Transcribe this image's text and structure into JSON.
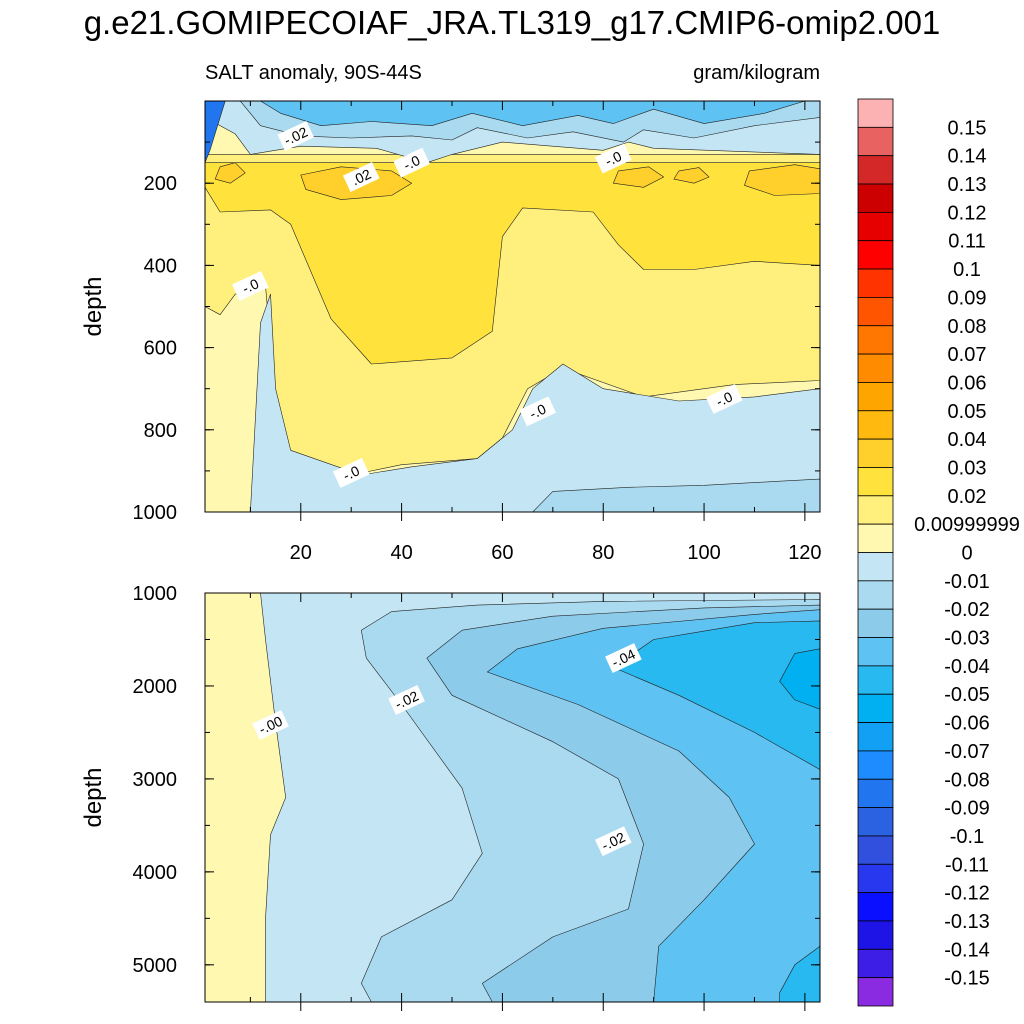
{
  "title": "g.e21.GOMIPECOIAF_JRA.TL319_g17.CMIP6-omip2.001",
  "subtitle_left": "SALT anomaly, 90S-44S",
  "subtitle_right": "gram/kilogram",
  "chart_data": {
    "type": "heatmap",
    "variable": "SALT anomaly",
    "region": "90S-44S",
    "units": "gram/kilogram",
    "x": {
      "range": [
        1,
        123
      ],
      "ticks": [
        20,
        40,
        60,
        80,
        100,
        120
      ]
    },
    "panels": [
      {
        "name": "upper",
        "ylabel": "depth",
        "yrange": [
          0,
          1000
        ],
        "yticks": [
          200,
          400,
          600,
          800,
          1000
        ],
        "contour_labels": [
          {
            "text": "-.02",
            "x": 19,
            "y": 85
          },
          {
            "text": ".02",
            "x": 32,
            "y": 185
          },
          {
            "text": "-.0",
            "x": 42,
            "y": 150
          },
          {
            "text": "-.0",
            "x": 82,
            "y": 140
          },
          {
            "text": "-.0",
            "x": 10,
            "y": 450
          },
          {
            "text": "-.0",
            "x": 67,
            "y": 755
          },
          {
            "text": "-.0",
            "x": 104,
            "y": 725
          },
          {
            "text": "-.0",
            "x": 30,
            "y": 905
          }
        ]
      },
      {
        "name": "lower",
        "ylabel": "depth",
        "yrange": [
          1000,
          5400
        ],
        "yticks": [
          1000,
          2000,
          3000,
          4000,
          5000
        ],
        "contour_labels": [
          {
            "text": "-.00",
            "x": 14,
            "y": 2420
          },
          {
            "text": "-.02",
            "x": 41,
            "y": 2150
          },
          {
            "text": "-.04",
            "x": 84,
            "y": 1700
          },
          {
            "text": "-.02",
            "x": 82,
            "y": 3670
          }
        ]
      }
    ],
    "colorbar": {
      "labels": [
        "0.15",
        "0.14",
        "0.13",
        "0.12",
        "0.11",
        "0.1",
        "0.09",
        "0.08",
        "0.07",
        "0.06",
        "0.05",
        "0.04",
        "0.03",
        "0.02",
        "0.00999999",
        "0",
        "-0.01",
        "-0.02",
        "-0.03",
        "-0.04",
        "-0.05",
        "-0.06",
        "-0.07",
        "-0.08",
        "-0.09",
        "-0.1",
        "-0.11",
        "-0.12",
        "-0.13",
        "-0.14",
        "-0.15"
      ],
      "colors": [
        "#fcb2b2",
        "#e86262",
        "#d42828",
        "#cc0000",
        "#e60000",
        "#ff0000",
        "#ff3300",
        "#ff5500",
        "#ff7700",
        "#ff8c00",
        "#ffa500",
        "#ffb90f",
        "#ffd02b",
        "#ffe23c",
        "#fff07d",
        "#fff8b0",
        "#c4e6f4",
        "#a9daf0",
        "#8dcbeb",
        "#5ec2f2",
        "#28b9f0",
        "#00b0f0",
        "#12a0f5",
        "#1e8cff",
        "#2175ee",
        "#2b62e2",
        "#3050dd",
        "#2838ee",
        "#0a10ff",
        "#1e14e6",
        "#3c1ee6",
        "#8a2be2"
      ]
    },
    "upper_fills": [
      {
        "name": "salt-yellow-pale",
        "color": "#fff8b0",
        "points": [
          [
            1,
            0
          ],
          [
            123,
            0
          ],
          [
            123,
            1000
          ],
          [
            1,
            1000
          ]
        ]
      },
      {
        "name": "salt-yellow-mid",
        "color": "#fff07d",
        "points": [
          [
            1,
            130
          ],
          [
            123,
            130
          ],
          [
            123,
            680
          ],
          [
            106,
            690
          ],
          [
            88,
            720
          ],
          [
            72,
            650
          ],
          [
            65,
            700
          ],
          [
            60,
            820
          ],
          [
            55,
            870
          ],
          [
            40,
            885
          ],
          [
            32,
            905
          ],
          [
            24,
            880
          ],
          [
            18,
            860
          ],
          [
            15,
            730
          ],
          [
            13,
            450
          ],
          [
            7,
            470
          ],
          [
            4,
            520
          ],
          [
            1,
            500
          ]
        ]
      },
      {
        "name": "salt-yellow-strong",
        "color": "#ffe23c",
        "points": [
          [
            1,
            150
          ],
          [
            123,
            150
          ],
          [
            123,
            400
          ],
          [
            110,
            390
          ],
          [
            98,
            410
          ],
          [
            88,
            410
          ],
          [
            83,
            350
          ],
          [
            78,
            270
          ],
          [
            64,
            260
          ],
          [
            60,
            330
          ],
          [
            58,
            560
          ],
          [
            50,
            625
          ],
          [
            34,
            640
          ],
          [
            26,
            530
          ],
          [
            18,
            300
          ],
          [
            14,
            265
          ],
          [
            4,
            270
          ],
          [
            1,
            210
          ]
        ]
      },
      {
        "name": "salt-yellow-deep-1",
        "color": "#ffd02b",
        "points": [
          [
            20,
            180
          ],
          [
            28,
            160
          ],
          [
            38,
            170
          ],
          [
            42,
            200
          ],
          [
            38,
            230
          ],
          [
            28,
            240
          ],
          [
            21,
            215
          ]
        ]
      },
      {
        "name": "salt-yellow-deep-2",
        "color": "#ffd02b",
        "points": [
          [
            109,
            170
          ],
          [
            118,
            155
          ],
          [
            123,
            165
          ],
          [
            123,
            225
          ],
          [
            114,
            230
          ],
          [
            108,
            205
          ]
        ]
      },
      {
        "name": "salt-yellow-deep-3",
        "color": "#ffd02b",
        "points": [
          [
            4,
            160
          ],
          [
            7,
            150
          ],
          [
            9,
            175
          ],
          [
            6,
            200
          ],
          [
            3,
            190
          ]
        ]
      },
      {
        "name": "salt-yellow-deep-4",
        "color": "#ffd02b",
        "points": [
          [
            83,
            170
          ],
          [
            89,
            160
          ],
          [
            92,
            185
          ],
          [
            88,
            210
          ],
          [
            82,
            200
          ]
        ]
      },
      {
        "name": "salt-yellow-deep-5",
        "color": "#ffd02b",
        "points": [
          [
            95,
            170
          ],
          [
            99,
            162
          ],
          [
            101,
            185
          ],
          [
            98,
            200
          ],
          [
            94,
            190
          ]
        ]
      },
      {
        "name": "salt-blue-deep-pool",
        "color": "#c4e6f4",
        "points": [
          [
            10,
            1000
          ],
          [
            12,
            540
          ],
          [
            14,
            470
          ],
          [
            15,
            700
          ],
          [
            18,
            850
          ],
          [
            25,
            880
          ],
          [
            32,
            910
          ],
          [
            42,
            890
          ],
          [
            55,
            870
          ],
          [
            62,
            800
          ],
          [
            66,
            700
          ],
          [
            72,
            640
          ],
          [
            80,
            700
          ],
          [
            95,
            730
          ],
          [
            110,
            720
          ],
          [
            123,
            700
          ],
          [
            123,
            1000
          ]
        ]
      },
      {
        "name": "salt-blue-deep-lower",
        "color": "#a9daf0",
        "points": [
          [
            66,
            1000
          ],
          [
            70,
            950
          ],
          [
            85,
            940
          ],
          [
            100,
            935
          ],
          [
            115,
            925
          ],
          [
            123,
            920
          ],
          [
            123,
            1000
          ]
        ]
      },
      {
        "name": "salt-blue-surface-1",
        "color": "#c4e6f4",
        "points": [
          [
            1,
            0
          ],
          [
            123,
            0
          ],
          [
            123,
            130
          ],
          [
            90,
            115
          ],
          [
            85,
            100
          ],
          [
            80,
            120
          ],
          [
            60,
            100
          ],
          [
            50,
            130
          ],
          [
            45,
            150
          ],
          [
            35,
            115
          ],
          [
            20,
            110
          ],
          [
            10,
            130
          ],
          [
            7,
            80
          ],
          [
            1,
            40
          ]
        ]
      },
      {
        "name": "salt-blue-surface-2",
        "color": "#a9daf0",
        "points": [
          [
            8,
            0
          ],
          [
            123,
            0
          ],
          [
            123,
            40
          ],
          [
            110,
            60
          ],
          [
            98,
            90
          ],
          [
            88,
            70
          ],
          [
            84,
            100
          ],
          [
            74,
            75
          ],
          [
            65,
            90
          ],
          [
            55,
            65
          ],
          [
            50,
            95
          ],
          [
            42,
            85
          ],
          [
            30,
            90
          ],
          [
            20,
            85
          ],
          [
            12,
            60
          ]
        ]
      },
      {
        "name": "salt-blue-surface-3",
        "color": "#5ec2f2",
        "points": [
          [
            12,
            0
          ],
          [
            120,
            0
          ],
          [
            112,
            30
          ],
          [
            100,
            55
          ],
          [
            90,
            20
          ],
          [
            82,
            55
          ],
          [
            75,
            35
          ],
          [
            64,
            60
          ],
          [
            54,
            30
          ],
          [
            46,
            60
          ],
          [
            34,
            50
          ],
          [
            24,
            60
          ],
          [
            16,
            30
          ]
        ]
      },
      {
        "name": "salt-blue-west-edge",
        "color": "#2175ee",
        "points": [
          [
            1,
            0
          ],
          [
            5,
            0
          ],
          [
            4,
            40
          ],
          [
            2,
            120
          ],
          [
            1,
            150
          ]
        ]
      }
    ],
    "lower_fills": [
      {
        "name": "lower-yellow",
        "color": "#fff8b0",
        "points": [
          [
            1,
            1000
          ],
          [
            123,
            1000
          ],
          [
            123,
            5400
          ],
          [
            1,
            5400
          ]
        ]
      },
      {
        "name": "lower-blue-0",
        "color": "#c4e6f4",
        "points": [
          [
            12,
            1000
          ],
          [
            123,
            1000
          ],
          [
            123,
            5400
          ],
          [
            13,
            5400
          ],
          [
            13,
            4500
          ],
          [
            14,
            3600
          ],
          [
            17,
            3200
          ],
          [
            15,
            2400
          ],
          [
            13,
            1500
          ]
        ]
      },
      {
        "name": "lower-blue-1",
        "color": "#a9daf0",
        "points": [
          [
            32,
            1400
          ],
          [
            38,
            1200
          ],
          [
            55,
            1130
          ],
          [
            80,
            1090
          ],
          [
            123,
            1070
          ],
          [
            123,
            5400
          ],
          [
            34,
            5400
          ],
          [
            32,
            5200
          ],
          [
            36,
            4700
          ],
          [
            50,
            4300
          ],
          [
            56,
            3800
          ],
          [
            52,
            3100
          ],
          [
            40,
            2200
          ],
          [
            33,
            1700
          ]
        ]
      },
      {
        "name": "lower-blue-2",
        "color": "#8dcbeb",
        "points": [
          [
            45,
            1700
          ],
          [
            52,
            1400
          ],
          [
            70,
            1250
          ],
          [
            100,
            1160
          ],
          [
            123,
            1130
          ],
          [
            123,
            5400
          ],
          [
            58,
            5400
          ],
          [
            56,
            5200
          ],
          [
            70,
            4700
          ],
          [
            85,
            4400
          ],
          [
            88,
            3700
          ],
          [
            83,
            3000
          ],
          [
            70,
            2600
          ],
          [
            50,
            2100
          ]
        ]
      },
      {
        "name": "lower-blue-3",
        "color": "#5ec2f2",
        "points": [
          [
            57,
            1850
          ],
          [
            63,
            1600
          ],
          [
            80,
            1380
          ],
          [
            110,
            1230
          ],
          [
            123,
            1180
          ],
          [
            123,
            5400
          ],
          [
            90,
            5400
          ],
          [
            91,
            4800
          ],
          [
            100,
            4300
          ],
          [
            110,
            3700
          ],
          [
            105,
            3200
          ],
          [
            95,
            2700
          ],
          [
            75,
            2200
          ]
        ]
      },
      {
        "name": "lower-blue-4",
        "color": "#28b9f0",
        "points": [
          [
            82,
            1800
          ],
          [
            90,
            1500
          ],
          [
            110,
            1320
          ],
          [
            123,
            1300
          ],
          [
            123,
            2900
          ],
          [
            110,
            2500
          ],
          [
            95,
            2100
          ]
        ]
      },
      {
        "name": "lower-blue-5",
        "color": "#00b0f0",
        "points": [
          [
            115,
            1950
          ],
          [
            118,
            1650
          ],
          [
            123,
            1600
          ],
          [
            123,
            2250
          ],
          [
            118,
            2150
          ]
        ]
      },
      {
        "name": "lower-blue-6",
        "color": "#28b9f0",
        "points": [
          [
            115,
            5300
          ],
          [
            118,
            5000
          ],
          [
            123,
            4800
          ],
          [
            123,
            5400
          ],
          [
            115,
            5400
          ]
        ]
      }
    ]
  }
}
